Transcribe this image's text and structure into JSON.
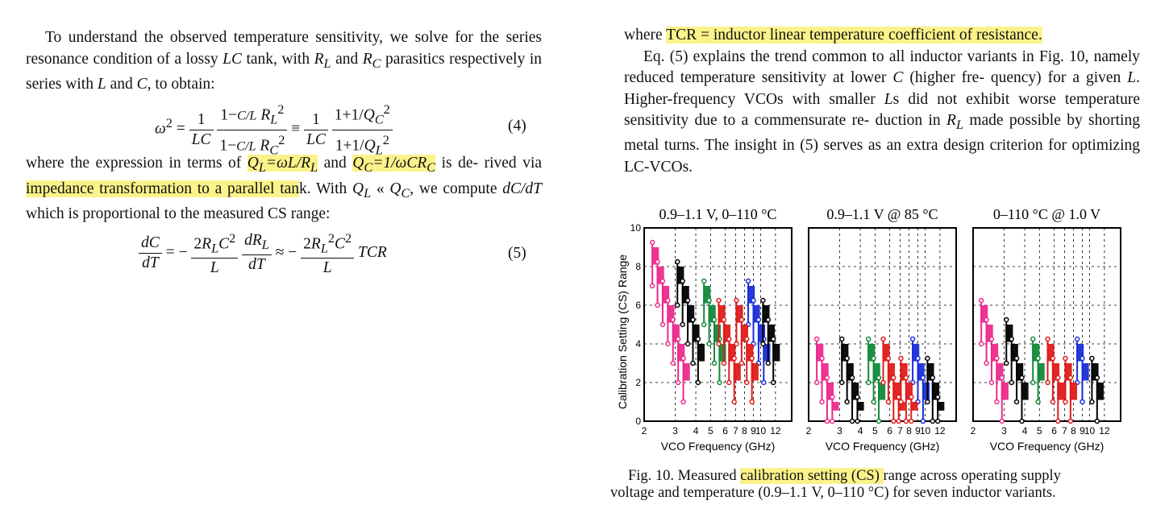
{
  "left": {
    "para1": {
      "s1": "To understand the observed temperature sensitivity, we solve for",
      "s2a": "the series resonance condition of a lossy ",
      "s2b": "LC",
      "s2c": " tank, with ",
      "s2d": "R",
      "s2e": "L",
      "s2f": " and ",
      "s2g": "R",
      "s2h": "C",
      "s3a": "parasitics respectively in series with ",
      "s3b": "L",
      "s3c": " and ",
      "s3d": "C",
      "s3e": ", to obtain:"
    },
    "eq4": {
      "number": "(4)"
    },
    "para2": {
      "a": "where the expression in terms of ",
      "hl1": "Q",
      "hl1sub": "L",
      "hl1b": "=ωL/R",
      "hl1c": "L",
      "b": " and ",
      "hl2": "Q",
      "hl2sub": "C",
      "hl2b": "=1/ωCR",
      "hl2c": "C",
      "c": " is de-",
      "d": "rived via ",
      "hl3": "impedance transformation to a parallel tan",
      "e": "k.  With ",
      "f": "Q",
      "fsub": "L",
      "g": " « ",
      "h": "Q",
      "hsub": "C",
      "i": ",",
      "j": "we compute ",
      "k": "dC/dT",
      "l": " which is proportional to the measured CS range:"
    },
    "eq5": {
      "number": "(5)"
    }
  },
  "right": {
    "p1a": "where ",
    "p1hl": "TCR = inductor linear temperature coefficient of resistance.",
    "p2a": "Eq. (5) explains the trend common to all inductor variants in Fig.",
    "p2b": "10, namely reduced temperature sensitivity at lower ",
    "p2c": "C",
    "p2d": " (higher fre-",
    "p2e": "quency) for a given ",
    "p2f": "L",
    "p2g": ".  Higher-frequency VCOs with smaller ",
    "p2h": "L",
    "p2i": "s did",
    "p2j": "not exhibit worse temperature sensitivity due to a commensurate re-",
    "p2k": "duction in ",
    "p2l": "R",
    "p2lsub": "L",
    "p2m": " made possible by shorting metal turns.  The insight in",
    "p2n": "(5) serves as an extra design criterion for optimizing LC-VCOs."
  },
  "figure": {
    "ylabel": "Calibration Setting (CS) Range",
    "xlabel": "VCO Frequency (GHz)",
    "panel_titles": [
      "0.9–1.1 V, 0–110 °C",
      "0.9–1.1 V @ 85 °C",
      "0–110 °C @ 1.0 V"
    ],
    "y_ticks": [
      "0",
      "2",
      "4",
      "6",
      "8",
      "10"
    ],
    "x_ticks": [
      "2",
      "3",
      "4",
      "5",
      "6",
      "7",
      "8",
      "9",
      "10",
      "12"
    ]
  },
  "colors": {
    "magenta": "#ec2a8c",
    "black": "#000000",
    "green": "#128a3a",
    "red": "#e01b1b",
    "blue": "#1a2ed8",
    "highlight": "#fbf38a"
  },
  "caption": {
    "a": "Fig. 10.  Measured ",
    "hl": "calibration setting (CS) ",
    "b": "range across operating supply",
    "c": "voltage and temperature (0.9–1.1 V, 0–110 °C) for seven inductor variants."
  }
}
